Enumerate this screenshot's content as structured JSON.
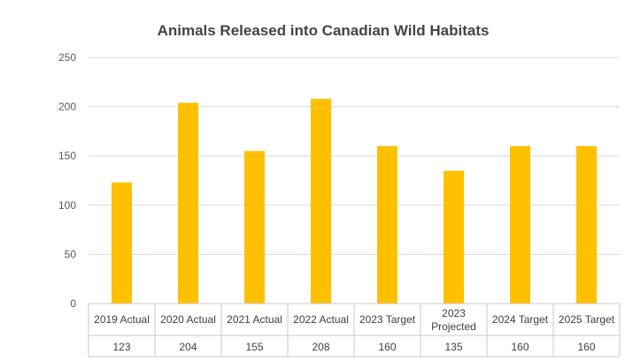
{
  "chart_data": {
    "type": "bar",
    "title": "Animals Released into Canadian Wild Habitats",
    "categories": [
      "2019 Actual",
      "2020 Actual",
      "2021 Actual",
      "2022 Actual",
      "2023 Target",
      "2023 Projected",
      "2024 Target",
      "2025 Target"
    ],
    "category_lines": [
      [
        "2019 Actual"
      ],
      [
        "2020 Actual"
      ],
      [
        "2021 Actual"
      ],
      [
        "2022 Actual"
      ],
      [
        "2023 Target"
      ],
      [
        "2023",
        "Projected"
      ],
      [
        "2024 Target"
      ],
      [
        "2025 Target"
      ]
    ],
    "values": [
      123,
      204,
      155,
      208,
      160,
      135,
      160,
      160
    ],
    "ylim": [
      0,
      250
    ],
    "yticks": [
      0,
      50,
      100,
      150,
      200,
      250
    ],
    "bar_color": "#FFC000",
    "grid": true,
    "legend": "none",
    "data_table": true
  }
}
